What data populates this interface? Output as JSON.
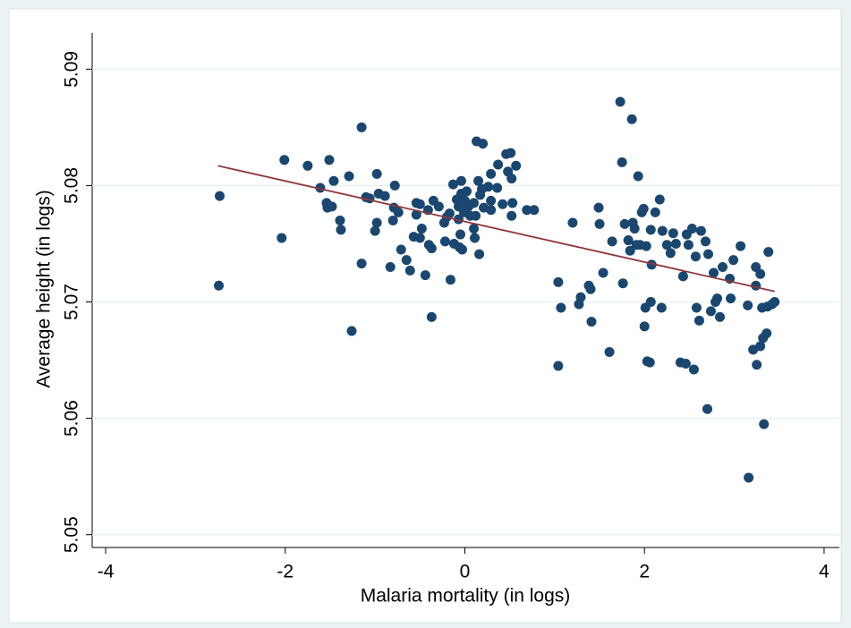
{
  "chart_data": {
    "type": "scatter",
    "x_label": "Malaria mortality (in logs)",
    "y_label": "Average height (in logs)",
    "xlim": [
      -4.15,
      4.17
    ],
    "ylim": [
      5.0489,
      5.0931
    ],
    "xticks": [
      -4,
      -2,
      0,
      2,
      4
    ],
    "yticks": [
      5.05,
      5.06,
      5.07,
      5.08,
      5.09
    ],
    "grid": true,
    "color": "#1a476f",
    "x": [
      -2.73,
      -2.74,
      -2.01,
      -2.04,
      -1.75,
      -1.51,
      -1.61,
      -1.46,
      -1.54,
      -1.53,
      -1.48,
      -1.39,
      -1.38,
      -1.29,
      -1.15,
      -1.15,
      -1.26,
      -1.1,
      -1.06,
      -0.98,
      -0.96,
      -0.89,
      -0.98,
      -1.0,
      -0.78,
      -0.79,
      -0.74,
      -0.8,
      -0.71,
      -0.83,
      -0.65,
      -0.61,
      -0.57,
      -0.54,
      -0.5,
      -0.54,
      -0.48,
      -0.41,
      -0.35,
      -0.29,
      -0.5,
      -0.4,
      -0.37,
      -0.44,
      -0.37,
      -0.23,
      -0.2,
      -0.17,
      -0.22,
      -0.12,
      -0.06,
      -0.03,
      -0.16,
      -0.13,
      -0.09,
      -0.07,
      -0.04,
      -0.04,
      -0.01,
      0.02,
      0.0,
      0.04,
      0.06,
      -0.07,
      -0.05,
      0.1,
      0.12,
      0.1,
      0.11,
      0.16,
      0.13,
      0.2,
      0.15,
      0.19,
      0.17,
      0.21,
      0.26,
      0.29,
      0.29,
      0.36,
      0.29,
      0.37,
      0.46,
      0.51,
      0.48,
      0.52,
      0.57,
      0.53,
      0.42,
      0.52,
      0.69,
      0.77,
      1.04,
      1.04,
      1.07,
      1.2,
      1.29,
      1.27,
      1.38,
      1.4,
      1.41,
      1.49,
      1.5,
      1.54,
      1.61,
      1.64,
      1.73,
      1.75,
      1.76,
      1.78,
      1.82,
      1.84,
      1.86,
      1.87,
      1.89,
      1.93,
      1.91,
      1.95,
      1.97,
      1.99,
      2.02,
      2.01,
      2.0,
      2.03,
      2.06,
      2.07,
      2.07,
      2.08,
      2.12,
      2.17,
      2.19,
      2.2,
      2.25,
      2.29,
      2.32,
      2.35,
      2.4,
      2.46,
      2.43,
      2.47,
      2.49,
      2.53,
      2.55,
      2.57,
      2.58,
      2.61,
      2.63,
      2.68,
      2.7,
      2.71,
      2.74,
      2.77,
      2.79,
      2.81,
      2.84,
      2.87,
      2.95,
      2.96,
      2.99,
      3.07,
      3.15,
      3.16,
      3.21,
      3.24,
      3.24,
      3.25,
      3.29,
      3.29,
      3.31,
      3.32,
      3.33,
      3.36,
      3.37,
      3.38,
      3.42,
      3.45
    ],
    "values": [
      5.0791,
      5.0714,
      5.0822,
      5.0755,
      5.0817,
      5.0822,
      5.0798,
      5.0804,
      5.0785,
      5.0781,
      5.0782,
      5.077,
      5.0762,
      5.0808,
      5.085,
      5.0733,
      5.0675,
      5.079,
      5.0789,
      5.081,
      5.0793,
      5.0791,
      5.0768,
      5.0761,
      5.08,
      5.0781,
      5.0777,
      5.077,
      5.0745,
      5.073,
      5.0736,
      5.0727,
      5.0756,
      5.0785,
      5.0784,
      5.0775,
      5.0763,
      5.0779,
      5.0787,
      5.0782,
      5.0755,
      5.0749,
      5.0746,
      5.0723,
      5.0687,
      5.0768,
      5.0773,
      5.0776,
      5.0752,
      5.075,
      5.0747,
      5.0745,
      5.0719,
      5.0801,
      5.0788,
      5.0782,
      5.0804,
      5.0793,
      5.0777,
      5.0795,
      5.0787,
      5.0782,
      5.0774,
      5.0771,
      5.0758,
      5.0785,
      5.0774,
      5.0763,
      5.0755,
      5.0741,
      5.0838,
      5.0836,
      5.0804,
      5.0797,
      5.0792,
      5.0781,
      5.0799,
      5.0779,
      5.0787,
      5.0798,
      5.081,
      5.0818,
      5.0827,
      5.0828,
      5.0812,
      5.0806,
      5.0817,
      5.0785,
      5.0784,
      5.0774,
      5.0779,
      5.0779,
      5.0717,
      5.0645,
      5.0695,
      5.0768,
      5.0704,
      5.0698,
      5.0714,
      5.0711,
      5.0683,
      5.0781,
      5.0767,
      5.0725,
      5.0657,
      5.0752,
      5.0872,
      5.082,
      5.0716,
      5.0767,
      5.0753,
      5.0744,
      5.0857,
      5.0768,
      5.0763,
      5.0808,
      5.0749,
      5.0749,
      5.0777,
      5.078,
      5.0748,
      5.0695,
      5.0679,
      5.0649,
      5.0648,
      5.07,
      5.0762,
      5.0732,
      5.0777,
      5.0788,
      5.0695,
      5.0761,
      5.0749,
      5.0742,
      5.0759,
      5.075,
      5.0648,
      5.0647,
      5.0722,
      5.0758,
      5.0749,
      5.0763,
      5.0642,
      5.0739,
      5.0695,
      5.0684,
      5.0761,
      5.0752,
      5.0608,
      5.0741,
      5.0692,
      5.0725,
      5.07,
      5.0703,
      5.0687,
      5.073,
      5.072,
      5.0703,
      5.0736,
      5.0748,
      5.0697,
      5.0549,
      5.0659,
      5.0714,
      5.073,
      5.0646,
      5.0724,
      5.0662,
      5.0695,
      5.0669,
      5.0595,
      5.0673,
      5.0696,
      5.0743,
      5.0698,
      5.07
    ],
    "fit_line": {
      "x": [
        -2.75,
        3.45
      ],
      "values": [
        5.0817,
        5.0709
      ],
      "color": "#90353b"
    }
  }
}
